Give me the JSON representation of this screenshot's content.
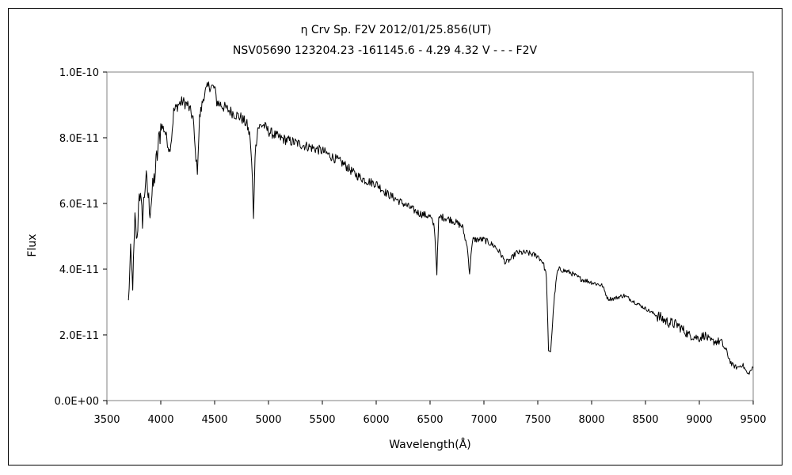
{
  "chart_data": {
    "type": "line",
    "title": "η Crv    Sp. F2V    2012/01/25.856(UT)",
    "subtitle": "NSV05690 123204.23 -161145.6 - 4.29 4.32 V - - - F2V",
    "xlabel": "Wavelength(Å)",
    "ylabel": "Flux",
    "xlim": [
      3500,
      9500
    ],
    "ylim": [
      0,
      1e-10
    ],
    "x_ticks": [
      3500,
      4000,
      4500,
      5000,
      5500,
      6000,
      6500,
      7000,
      7500,
      8000,
      8500,
      9000,
      9500
    ],
    "x_tick_labels": [
      "3500",
      "4000",
      "4500",
      "5000",
      "5500",
      "6000",
      "6500",
      "7000",
      "7500",
      "8000",
      "8500",
      "9000",
      "9500"
    ],
    "y_ticks": [
      0,
      2e-11,
      4e-11,
      6e-11,
      8e-11,
      1e-10
    ],
    "y_tick_labels": [
      "0.0E+00",
      "2.0E-11",
      "4.0E-11",
      "6.0E-11",
      "8.0E-11",
      "1.0E-10"
    ],
    "grid": false,
    "legend": "none",
    "series": [
      {
        "x": [
          3700,
          3720,
          3740,
          3760,
          3780,
          3800,
          3830,
          3860,
          3900,
          3950,
          3980,
          4000,
          4040,
          4080,
          4100,
          4120,
          4160,
          4200,
          4250,
          4300,
          4320,
          4340,
          4360,
          4400,
          4450,
          4500,
          4520,
          4560,
          4600,
          4650,
          4700,
          4750,
          4800,
          4830,
          4850,
          4861,
          4875,
          4900,
          4950,
          5000,
          5100,
          5200,
          5300,
          5400,
          5500,
          5600,
          5700,
          5800,
          5900,
          6000,
          6100,
          6200,
          6300,
          6400,
          6500,
          6540,
          6563,
          6580,
          6600,
          6700,
          6800,
          6850,
          6867,
          6880,
          6900,
          7000,
          7100,
          7150,
          7200,
          7250,
          7300,
          7400,
          7500,
          7550,
          7580,
          7600,
          7620,
          7650,
          7680,
          7700,
          7800,
          7900,
          8000,
          8100,
          8150,
          8200,
          8300,
          8400,
          8500,
          8600,
          8700,
          8800,
          8900,
          9000,
          9050,
          9100,
          9200,
          9250,
          9300,
          9350,
          9400,
          9450,
          9500
        ],
        "values": [
          3e-11,
          4.5e-11,
          3.5e-11,
          5.5e-11,
          4.8e-11,
          6.5e-11,
          5.5e-11,
          6.8e-11,
          5.8e-11,
          7e-11,
          7.8e-11,
          8.4e-11,
          8.2e-11,
          7.6e-11,
          8e-11,
          8.8e-11,
          9e-11,
          9.1e-11,
          9e-11,
          8.6e-11,
          7.6e-11,
          7e-11,
          8.6e-11,
          9.3e-11,
          9.6e-11,
          9.5e-11,
          9.1e-11,
          9e-11,
          8.9e-11,
          8.8e-11,
          8.7e-11,
          8.6e-11,
          8.4e-11,
          8e-11,
          6.8e-11,
          5.5e-11,
          7.5e-11,
          8.3e-11,
          8.4e-11,
          8.2e-11,
          8e-11,
          7.9e-11,
          7.8e-11,
          7.7e-11,
          7.6e-11,
          7.4e-11,
          7.2e-11,
          6.9e-11,
          6.7e-11,
          6.6e-11,
          6.3e-11,
          6.1e-11,
          5.9e-11,
          5.7e-11,
          5.6e-11,
          5.3e-11,
          3.9e-11,
          5.5e-11,
          5.6e-11,
          5.5e-11,
          5.3e-11,
          4.6e-11,
          3.8e-11,
          4.5e-11,
          4.9e-11,
          4.9e-11,
          4.7e-11,
          4.5e-11,
          4.2e-11,
          4.3e-11,
          4.5e-11,
          4.5e-11,
          4.4e-11,
          4.2e-11,
          3.8e-11,
          1.5e-11,
          1.5e-11,
          3e-11,
          3.9e-11,
          4e-11,
          3.9e-11,
          3.7e-11,
          3.6e-11,
          3.5e-11,
          3.1e-11,
          3.1e-11,
          3.2e-11,
          3e-11,
          2.8e-11,
          2.6e-11,
          2.4e-11,
          2.3e-11,
          2e-11,
          1.9e-11,
          2e-11,
          1.8e-11,
          1.8e-11,
          1.5e-11,
          1.1e-11,
          1e-11,
          1.1e-11,
          8e-12,
          1e-11
        ]
      }
    ]
  }
}
